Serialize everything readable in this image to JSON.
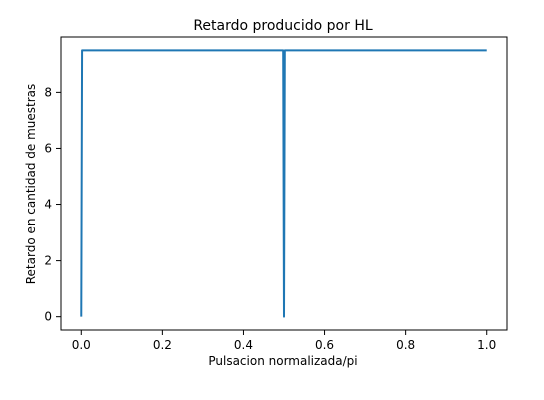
{
  "chart_data": {
    "type": "line",
    "title": "Retardo producido por HL",
    "xlabel": "Pulsacion normalizada/pi",
    "ylabel": "Retardo en cantidad de muestras",
    "xlim": [
      -0.05,
      1.05
    ],
    "ylim": [
      -0.475,
      9.975
    ],
    "x_ticks": [
      0.0,
      0.2,
      0.4,
      0.6,
      0.8,
      1.0
    ],
    "x_tick_labels": [
      "0.0",
      "0.2",
      "0.4",
      "0.6",
      "0.8",
      "1.0"
    ],
    "y_ticks": [
      0,
      2,
      4,
      6,
      8
    ],
    "y_tick_labels": [
      "0",
      "2",
      "4",
      "6",
      "8"
    ],
    "grid": false,
    "legend": "none",
    "series": [
      {
        "color": "#1f77b4",
        "x": [
          0.0,
          0.002,
          0.498,
          0.5,
          0.502,
          1.0
        ],
        "y": [
          0.0,
          9.5,
          9.5,
          0.0,
          9.5,
          9.5
        ]
      }
    ]
  }
}
